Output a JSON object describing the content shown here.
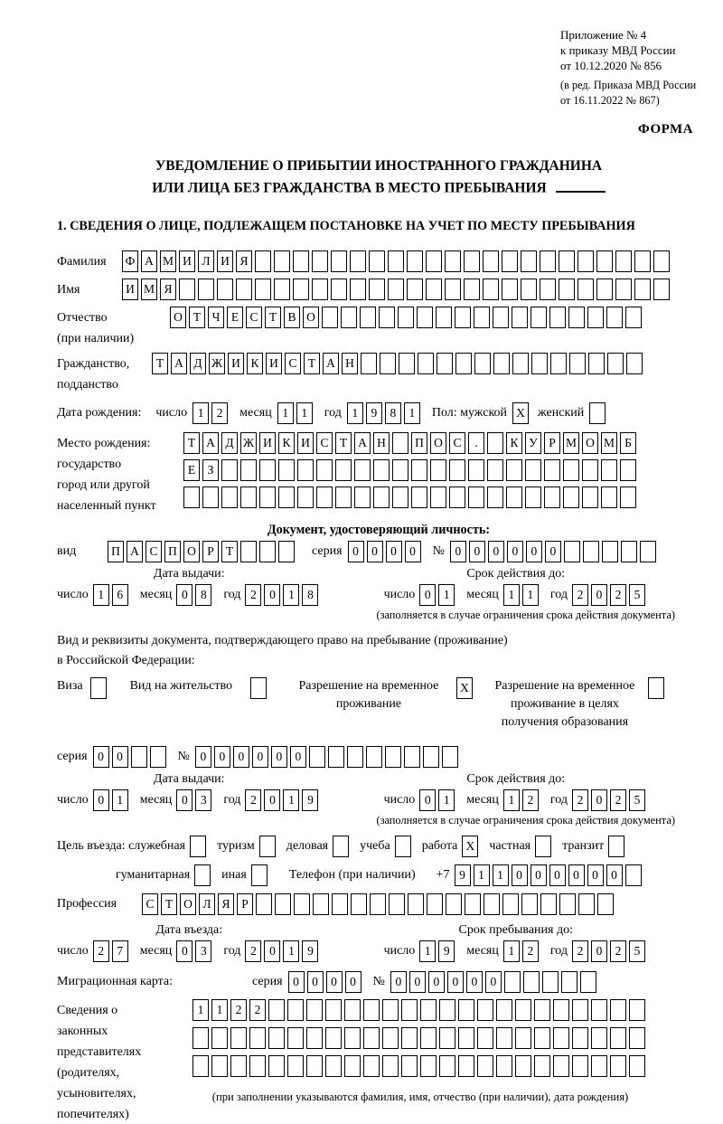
{
  "annex": {
    "line1": "Приложение № 4",
    "line2": "к приказу МВД России",
    "line3": "от 10.12.2020 № 856",
    "line4": "(в ред. Приказа МВД России",
    "line5": "от 16.11.2022 № 867)"
  },
  "forma": "ФОРМА",
  "title": {
    "line1": "УВЕДОМЛЕНИЕ О ПРИБЫТИИ ИНОСТРАННОГО ГРАЖДАНИНА",
    "line2": "ИЛИ ЛИЦА БЕЗ ГРАЖДАНСТВА В МЕСТО ПРЕБЫВАНИЯ"
  },
  "section1_title": "1. СВЕДЕНИЯ О ЛИЦЕ, ПОДЛЕЖАЩЕМ ПОСТАНОВКЕ НА УЧЕТ ПО МЕСТУ ПРЕБЫВАНИЯ",
  "labels": {
    "surname": "Фамилия",
    "name": "Имя",
    "patronymic1": "Отчество",
    "patronymic2": "(при наличии)",
    "citizenship1": "Гражданство,",
    "citizenship2": "подданство",
    "birth_date": "Дата рождения:",
    "day": "число",
    "month": "месяц",
    "year": "год",
    "sex": "Пол: мужской",
    "female": "женский",
    "birth_place": "Место рождения:",
    "state": "государство",
    "city1": "город или другой",
    "city2": "населенный пункт",
    "identity_doc": "Документ, удостоверяющий личность:",
    "doc_type": "вид",
    "series": "серия",
    "number": "№",
    "issue_date": "Дата выдачи:",
    "valid_until": "Срок действия до:",
    "valid_note": "(заполняется в случае ограничения срока действия документа)",
    "resident_doc1": "Вид и реквизиты документа, подтверждающего право на пребывание (проживание)",
    "resident_doc2": "в Российской Федерации:",
    "visa": "Виза",
    "residence_permit": "Вид на жительство",
    "temp_permit": "Разрешение на временное проживание",
    "temp_permit_edu": "Разрешение на временное проживание в целях получения образования",
    "purpose": "Цель въезда: служебная",
    "tourism": "туризм",
    "business": "деловая",
    "study": "учеба",
    "work": "работа",
    "private": "частная",
    "transit": "транзит",
    "humanitarian": "гуманитарная",
    "other": "иная",
    "phone": "Телефон (при наличии)",
    "phone_prefix": "+7",
    "profession": "Профессия",
    "entry_date": "Дата въезда:",
    "stay_until": "Срок пребывания до:",
    "migration_card": "Миграционная карта:",
    "representatives": [
      "Сведения о",
      "законных",
      "представителях",
      "(родителях,",
      "усыновителях,",
      "попечителях)"
    ],
    "representatives_note": "(при заполнении указываются фамилия, имя, отчество (при наличии), дата рождения)"
  },
  "values": {
    "surname": {
      "value": "ФАМИЛИЯ",
      "len": 29
    },
    "name": {
      "value": "ИМЯ",
      "len": 29
    },
    "patronymic": {
      "value": "ОТЧЕСТВО",
      "len": 25
    },
    "citizenship": {
      "value": "ТАДЖИКИСТАН",
      "len": 26
    },
    "birth_day": {
      "value": "12",
      "len": 2
    },
    "birth_month": {
      "value": "11",
      "len": 2
    },
    "birth_year": {
      "value": "1981",
      "len": 4
    },
    "sex_male": "X",
    "sex_female": "",
    "birthplace_row1": {
      "value": "ТАДЖИКИСТАН ПОС. КУРМОМБ",
      "len": 24
    },
    "birthplace_row2": {
      "value": "ЕЗ",
      "len": 24
    },
    "birthplace_row3": {
      "value": "",
      "len": 24
    },
    "doc_type": {
      "value": "ПАСПОРТ",
      "len": 10
    },
    "doc_series": {
      "value": "0000",
      "len": 4
    },
    "doc_number": {
      "value": "000000",
      "len": 11
    },
    "doc_issue_day": {
      "value": "16",
      "len": 2
    },
    "doc_issue_month": {
      "value": "08",
      "len": 2
    },
    "doc_issue_year": {
      "value": "2018",
      "len": 4
    },
    "doc_valid_day": {
      "value": "01",
      "len": 2
    },
    "doc_valid_month": {
      "value": "11",
      "len": 2
    },
    "doc_valid_year": {
      "value": "2025",
      "len": 4
    },
    "visa": "",
    "residence_permit": "",
    "temp_permit": "X",
    "temp_permit_edu": "",
    "permit_series": {
      "value": "00",
      "len": 4
    },
    "permit_number": {
      "value": "000000",
      "len": 14
    },
    "permit_issue_day": {
      "value": "01",
      "len": 2
    },
    "permit_issue_month": {
      "value": "03",
      "len": 2
    },
    "permit_issue_year": {
      "value": "2019",
      "len": 4
    },
    "permit_valid_day": {
      "value": "01",
      "len": 2
    },
    "permit_valid_month": {
      "value": "12",
      "len": 2
    },
    "permit_valid_year": {
      "value": "2025",
      "len": 4
    },
    "purpose_official": "",
    "purpose_tourism": "",
    "purpose_business": "",
    "purpose_study": "",
    "purpose_work": "X",
    "purpose_private": "",
    "purpose_transit": "",
    "purpose_humanitarian": "",
    "purpose_other": "",
    "phone": {
      "value": "911000000",
      "len": 10
    },
    "profession": {
      "value": "СТОЛЯР",
      "len": 25
    },
    "entry_day": {
      "value": "27",
      "len": 2
    },
    "entry_month": {
      "value": "03",
      "len": 2
    },
    "entry_year": {
      "value": "2019",
      "len": 4
    },
    "stay_day": {
      "value": "19",
      "len": 2
    },
    "stay_month": {
      "value": "12",
      "len": 2
    },
    "stay_year": {
      "value": "2025",
      "len": 4
    },
    "mig_series": {
      "value": "0000",
      "len": 4
    },
    "mig_number": {
      "value": "000000",
      "len": 11
    },
    "reps_row1": {
      "value": "1122",
      "len": 24
    },
    "reps_row2": {
      "value": "",
      "len": 24
    },
    "reps_row3": {
      "value": "",
      "len": 24
    }
  }
}
